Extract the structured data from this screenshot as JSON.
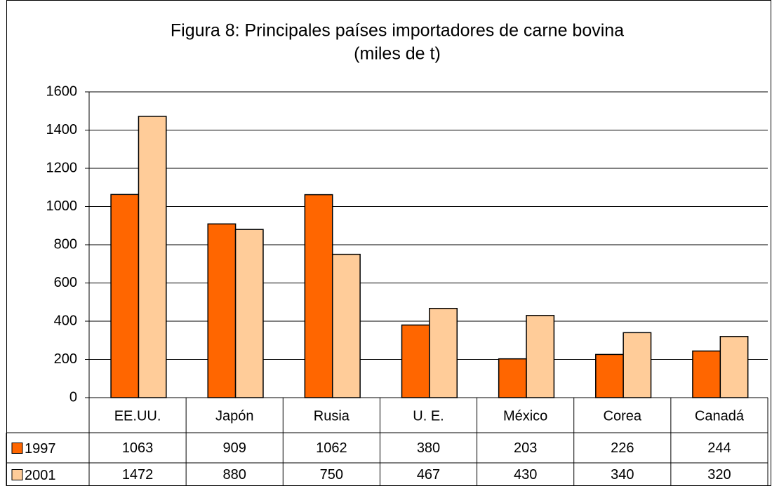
{
  "chart_data": {
    "type": "bar",
    "title": "Figura 8: Principales países importadores de carne bovina",
    "subtitle": "(miles de t)",
    "categories": [
      "EE.UU.",
      "Japón",
      "Rusia",
      "U. E.",
      "México",
      "Corea",
      "Canadá"
    ],
    "series": [
      {
        "name": "1997",
        "color": "#ff6600",
        "values": [
          1063,
          909,
          1062,
          380,
          203,
          226,
          244
        ]
      },
      {
        "name": "2001",
        "color": "#ffcc99",
        "values": [
          1472,
          880,
          750,
          467,
          430,
          340,
          320
        ]
      }
    ],
    "ylim": [
      0,
      1600
    ],
    "yticks": [
      0,
      200,
      400,
      600,
      800,
      1000,
      1200,
      1400,
      1600
    ],
    "grid": true
  }
}
